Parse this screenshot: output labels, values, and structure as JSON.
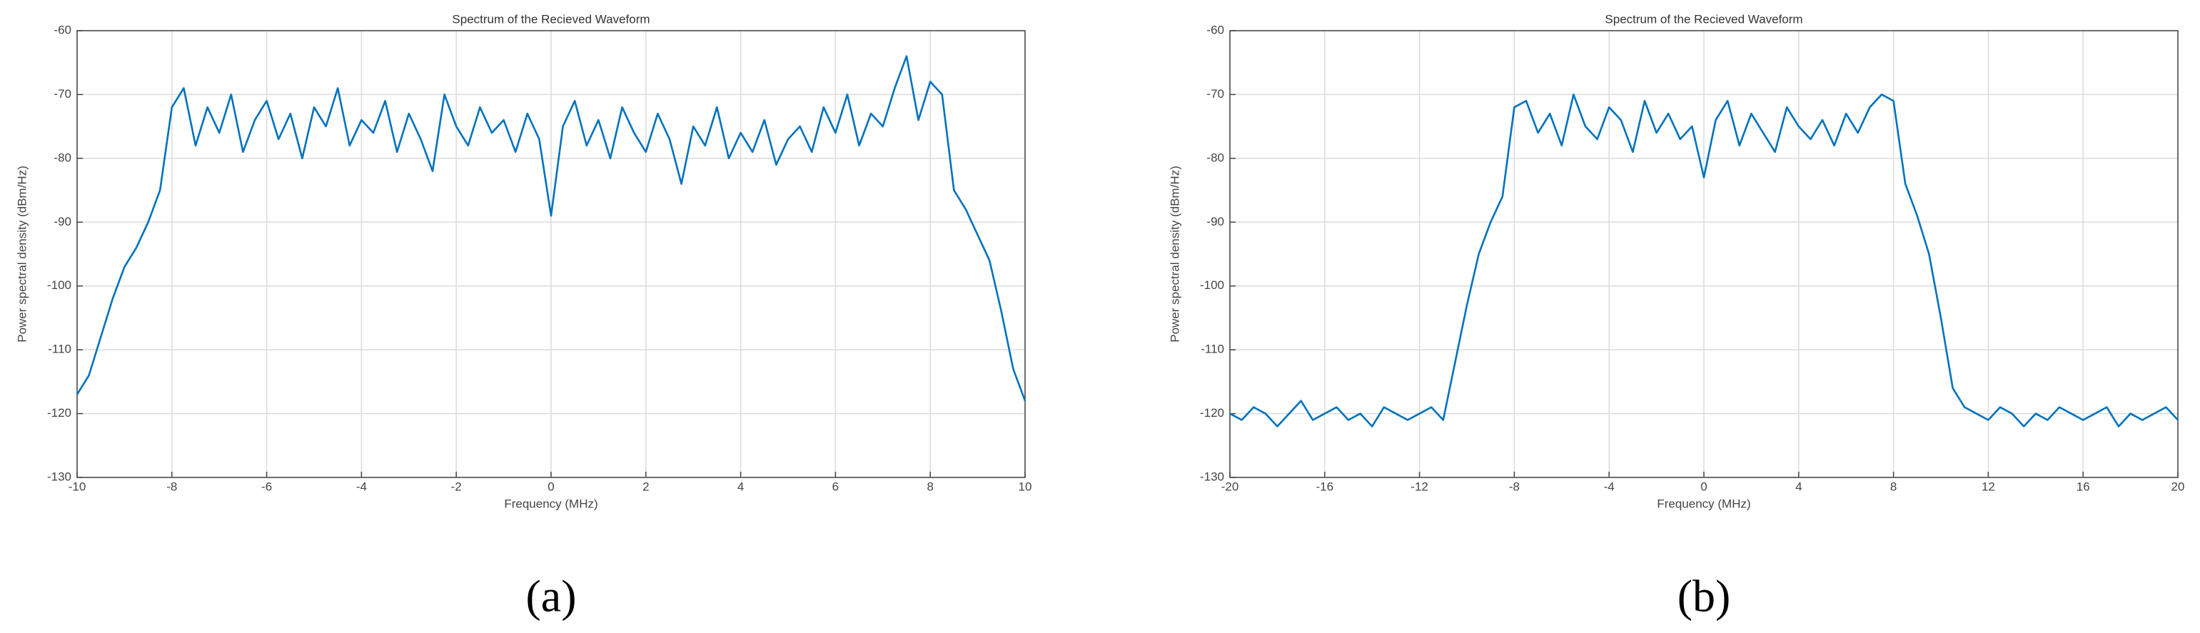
{
  "chart_data": [
    {
      "type": "line",
      "title": "Spectrum of the Recieved Waveform",
      "xlabel": "Frequency (MHz)",
      "ylabel": "Power spectral density (dBm/Hz)",
      "caption": "(a)",
      "color": "#0072bd",
      "grid": true,
      "xlim": [
        -10,
        10
      ],
      "ylim": [
        -130,
        -60
      ],
      "xticks": [
        -10,
        -8,
        -6,
        -4,
        -2,
        0,
        2,
        4,
        6,
        8,
        10
      ],
      "yticks": [
        -130,
        -120,
        -110,
        -100,
        -90,
        -80,
        -70,
        -60
      ],
      "x": [
        -10,
        -9.75,
        -9.5,
        -9.25,
        -9,
        -8.75,
        -8.5,
        -8.25,
        -8,
        -7.75,
        -7.5,
        -7.25,
        -7,
        -6.75,
        -6.5,
        -6.25,
        -6,
        -5.75,
        -5.5,
        -5.25,
        -5,
        -4.75,
        -4.5,
        -4.25,
        -4,
        -3.75,
        -3.5,
        -3.25,
        -3,
        -2.75,
        -2.5,
        -2.25,
        -2,
        -1.75,
        -1.5,
        -1.25,
        -1,
        -0.75,
        -0.5,
        -0.25,
        0,
        0.25,
        0.5,
        0.75,
        1,
        1.25,
        1.5,
        1.75,
        2,
        2.25,
        2.5,
        2.75,
        3,
        3.25,
        3.5,
        3.75,
        4,
        4.25,
        4.5,
        4.75,
        5,
        5.25,
        5.5,
        5.75,
        6,
        6.25,
        6.5,
        6.75,
        7,
        7.25,
        7.5,
        7.75,
        8,
        8.25,
        8.5,
        8.75,
        9,
        9.25,
        9.5,
        9.75,
        10
      ],
      "values": [
        -117,
        -114,
        -108,
        -102,
        -97,
        -94,
        -90,
        -85,
        -72,
        -69,
        -78,
        -72,
        -76,
        -70,
        -79,
        -74,
        -71,
        -77,
        -73,
        -80,
        -72,
        -75,
        -69,
        -78,
        -74,
        -76,
        -71,
        -79,
        -73,
        -77,
        -82,
        -70,
        -75,
        -78,
        -72,
        -76,
        -74,
        -79,
        -73,
        -77,
        -89,
        -75,
        -71,
        -78,
        -74,
        -80,
        -72,
        -76,
        -79,
        -73,
        -77,
        -84,
        -75,
        -78,
        -72,
        -80,
        -76,
        -79,
        -74,
        -81,
        -77,
        -75,
        -79,
        -72,
        -76,
        -70,
        -78,
        -73,
        -75,
        -69,
        -64,
        -74,
        -68,
        -70,
        -85,
        -88,
        -92,
        -96,
        -104,
        -113,
        -118
      ]
    },
    {
      "type": "line",
      "title": "Spectrum of the Recieved Waveform",
      "xlabel": "Frequency (MHz)",
      "ylabel": "Power spectral density (dBm/Hz)",
      "caption": "(b)",
      "color": "#0072bd",
      "grid": true,
      "xlim": [
        -20,
        20
      ],
      "ylim": [
        -130,
        -60
      ],
      "xticks": [
        -20,
        -16,
        -12,
        -8,
        -4,
        0,
        4,
        8,
        12,
        16,
        20
      ],
      "yticks": [
        -130,
        -120,
        -110,
        -100,
        -90,
        -80,
        -70,
        -60
      ],
      "x": [
        -20,
        -19.5,
        -19,
        -18.5,
        -18,
        -17.5,
        -17,
        -16.5,
        -16,
        -15.5,
        -15,
        -14.5,
        -14,
        -13.5,
        -13,
        -12.5,
        -12,
        -11.5,
        -11,
        -10.5,
        -10,
        -9.5,
        -9,
        -8.5,
        -8,
        -7.5,
        -7,
        -6.5,
        -6,
        -5.5,
        -5,
        -4.5,
        -4,
        -3.5,
        -3,
        -2.5,
        -2,
        -1.5,
        -1,
        -0.5,
        0,
        0.5,
        1,
        1.5,
        2,
        2.5,
        3,
        3.5,
        4,
        4.5,
        5,
        5.5,
        6,
        6.5,
        7,
        7.5,
        8,
        8.5,
        9,
        9.5,
        10,
        10.5,
        11,
        11.5,
        12,
        12.5,
        13,
        13.5,
        14,
        14.5,
        15,
        15.5,
        16,
        16.5,
        17,
        17.5,
        18,
        18.5,
        19,
        19.5,
        20
      ],
      "values": [
        -120,
        -121,
        -119,
        -120,
        -122,
        -120,
        -118,
        -121,
        -120,
        -119,
        -121,
        -120,
        -122,
        -119,
        -120,
        -121,
        -120,
        -119,
        -121,
        -112,
        -103,
        -95,
        -90,
        -86,
        -72,
        -71,
        -76,
        -73,
        -78,
        -70,
        -75,
        -77,
        -72,
        -74,
        -79,
        -71,
        -76,
        -73,
        -77,
        -75,
        -83,
        -74,
        -71,
        -78,
        -73,
        -76,
        -79,
        -72,
        -75,
        -77,
        -74,
        -78,
        -73,
        -76,
        -72,
        -70,
        -71,
        -84,
        -89,
        -95,
        -105,
        -116,
        -119,
        -120,
        -121,
        -119,
        -120,
        -122,
        -120,
        -121,
        -119,
        -120,
        -121,
        -120,
        -119,
        -122,
        -120,
        -121,
        -120,
        -119,
        -121
      ]
    }
  ]
}
